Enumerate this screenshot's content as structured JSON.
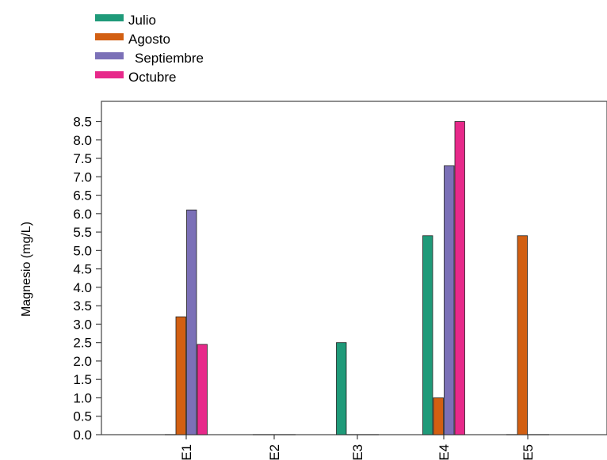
{
  "chart_data": {
    "type": "bar",
    "ylabel": "Magnesio (mg/L)",
    "ylim": [
      0,
      9.0
    ],
    "yticks": [
      "0.0",
      "0.5",
      "1.0",
      "1.5",
      "2.0",
      "2.5",
      "3.0",
      "3.5",
      "4.0",
      "4.5",
      "5.0",
      "5.5",
      "6.0",
      "6.5",
      "7.0",
      "7.5",
      "8.0",
      "8.5"
    ],
    "categories": [
      "E1",
      "E2",
      "E3",
      "E4",
      "E5"
    ],
    "series": [
      {
        "name": "Julio",
        "color": "#1f9a79",
        "values": [
          0.0,
          0.0,
          2.5,
          5.4,
          0.0
        ]
      },
      {
        "name": "Agosto",
        "color": "#d25f12",
        "values": [
          3.2,
          0.0,
          0.0,
          1.0,
          5.4
        ]
      },
      {
        "name": "Septiembre",
        "color": "#7b70b7",
        "values": [
          6.1,
          0.0,
          0.0,
          7.3,
          0.0
        ]
      },
      {
        "name": "Octubre",
        "color": "#e7298a",
        "values": [
          2.45,
          0.0,
          0.0,
          8.5,
          0.0
        ]
      }
    ],
    "legend_position": "top-left",
    "grid": false
  }
}
